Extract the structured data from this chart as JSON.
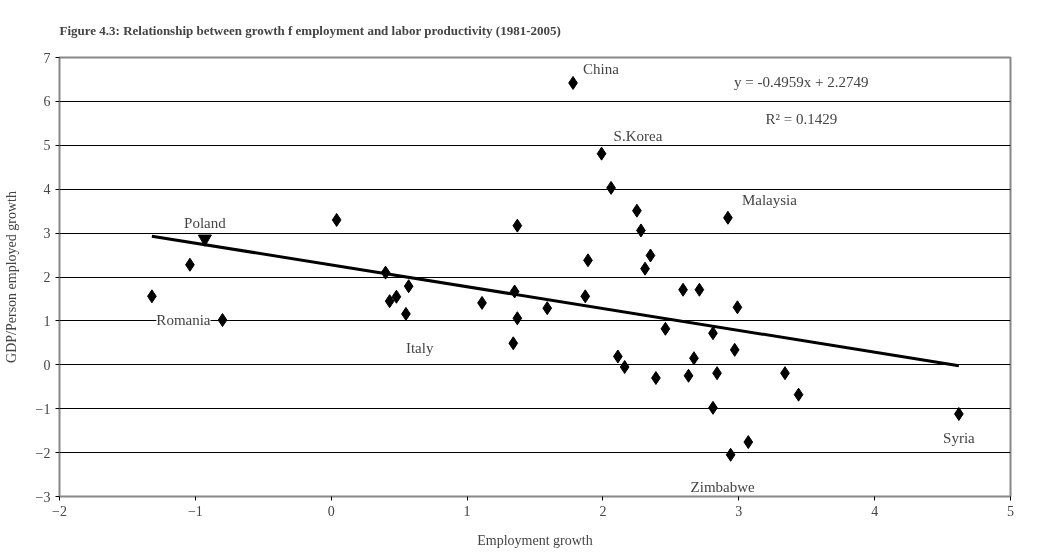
{
  "chart_data": {
    "type": "scatter",
    "title": "Figure 4.3: Relationship between growth f employment and labor  productivity (1981-2005)",
    "xlabel": "Employment growth",
    "ylabel": "GDP/Person employed growth",
    "xlim": [
      -2,
      5
    ],
    "ylim": [
      -3,
      7
    ],
    "xticks": [
      -2,
      -1,
      0,
      1,
      2,
      3,
      4,
      5
    ],
    "yticks": [
      -3,
      -2,
      -1,
      0,
      1,
      2,
      3,
      4,
      5,
      6,
      7
    ],
    "grid": "y",
    "series": [
      {
        "color": "#000000",
        "marker": "diamond",
        "x": [
          -1.32,
          -1.04,
          -0.8,
          0.04,
          0.4,
          0.43,
          0.48,
          0.57,
          0.55,
          1.11,
          1.35,
          1.37,
          1.37,
          1.34,
          1.59,
          1.78,
          1.89,
          1.87,
          1.99,
          2.06,
          2.25,
          2.28,
          2.35,
          2.31,
          2.11,
          2.16,
          2.92,
          2.59,
          2.71,
          2.99,
          2.46,
          2.81,
          2.97,
          2.67,
          2.39,
          2.63,
          2.84,
          3.34,
          3.44,
          2.81,
          4.62,
          3.07,
          2.94
        ],
        "values": [
          1.56,
          2.28,
          1.02,
          3.3,
          2.1,
          1.45,
          1.55,
          1.79,
          1.16,
          1.41,
          1.67,
          3.17,
          1.06,
          0.49,
          1.29,
          6.42,
          2.38,
          1.56,
          4.81,
          4.03,
          3.51,
          3.06,
          2.49,
          2.19,
          0.19,
          -0.05,
          3.35,
          1.71,
          1.71,
          1.31,
          0.82,
          0.72,
          0.34,
          0.15,
          -0.3,
          -0.25,
          -0.19,
          -0.19,
          -0.68,
          -0.98,
          -1.12,
          -1.76,
          -2.05
        ]
      },
      {
        "color": "#000000",
        "marker": "triangle",
        "x": [
          -0.93
        ],
        "values": [
          2.87
        ]
      },
      {
        "type": "line",
        "color": "#000000",
        "x": [
          -1.32,
          4.62
        ],
        "values": [
          2.93,
          -0.02
        ]
      }
    ],
    "annotations": [
      {
        "text": "China",
        "x": 1.78,
        "y": 6.42
      },
      {
        "text": "S.Korea",
        "x": 1.99,
        "y": 4.81
      },
      {
        "text": "Malaysia",
        "x": 2.92,
        "y": 3.35
      },
      {
        "text": "Poland",
        "x": -0.93,
        "y": 2.87
      },
      {
        "text": "Romania",
        "x": -0.8,
        "y": 1.02
      },
      {
        "text": "Italy",
        "x": 0.55,
        "y": 1.16
      },
      {
        "text": "Syria",
        "x": 4.62,
        "y": -1.12
      },
      {
        "text": "Zimbabwe",
        "x": 2.94,
        "y": -2.05
      },
      "y = -0.4959x + 2.2749",
      "R² = 0.1429"
    ]
  }
}
